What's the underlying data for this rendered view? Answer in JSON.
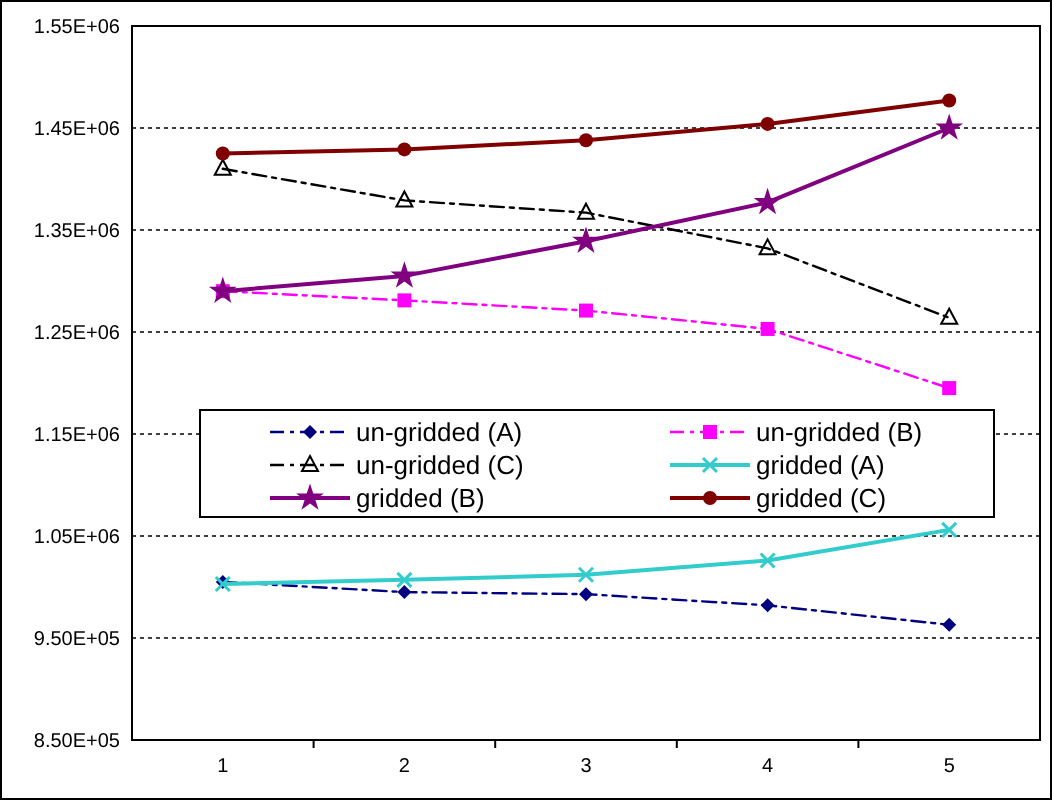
{
  "chart_data": {
    "type": "line",
    "categories": [
      "1",
      "2",
      "3",
      "4",
      "5"
    ],
    "ylim": [
      850000,
      1550000
    ],
    "yticks": [
      {
        "value": 850000,
        "label": "8.50E+05"
      },
      {
        "value": 950000,
        "label": "9.50E+05"
      },
      {
        "value": 1050000,
        "label": "1.05E+06"
      },
      {
        "value": 1150000,
        "label": "1.15E+06"
      },
      {
        "value": 1250000,
        "label": "1.25E+06"
      },
      {
        "value": 1350000,
        "label": "1.35E+06"
      },
      {
        "value": 1450000,
        "label": "1.45E+06"
      },
      {
        "value": 1550000,
        "label": "1.55E+06"
      }
    ],
    "grid": "y",
    "legend": "center",
    "series": [
      {
        "name": "un-gridded (A)",
        "color": "#000080",
        "marker": "diamond",
        "line_style": "dashed",
        "values": [
          1005000,
          995000,
          993000,
          982000,
          963000
        ]
      },
      {
        "name": "un-gridded (B)",
        "color": "#ff00ff",
        "marker": "square",
        "line_style": "dashed",
        "values": [
          1290000,
          1281000,
          1271000,
          1253000,
          1195000
        ]
      },
      {
        "name": "un-gridded (C)",
        "color": "#000000",
        "marker": "triangle",
        "line_style": "dashed",
        "values": [
          1410000,
          1379000,
          1367000,
          1332000,
          1264000
        ]
      },
      {
        "name": "gridded (A)",
        "color": "#33cccc",
        "marker": "cross",
        "line_style": "solid",
        "values": [
          1003000,
          1007000,
          1012000,
          1026000,
          1056000
        ]
      },
      {
        "name": "gridded (B)",
        "color": "#800080",
        "marker": "star",
        "line_style": "solid",
        "values": [
          1290000,
          1305000,
          1339000,
          1377000,
          1450000
        ]
      },
      {
        "name": "gridded (C)",
        "color": "#800000",
        "marker": "circle",
        "line_style": "solid",
        "values": [
          1425000,
          1429000,
          1438000,
          1454000,
          1477000
        ]
      }
    ]
  }
}
